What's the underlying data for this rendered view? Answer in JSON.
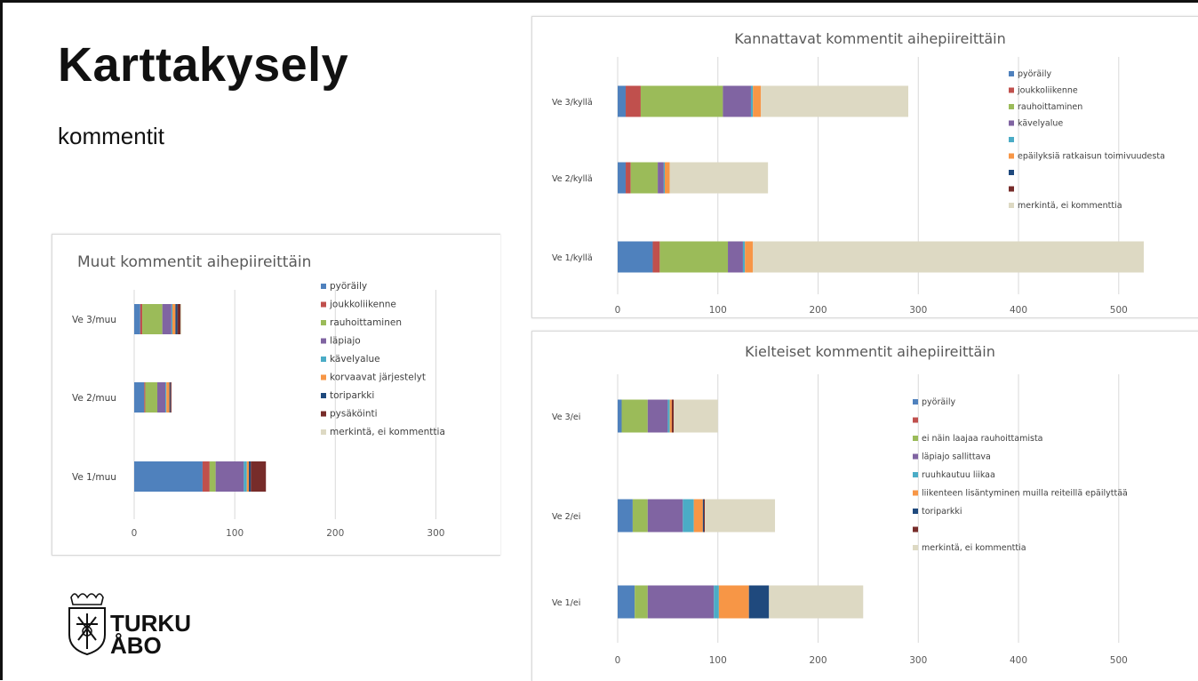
{
  "slide": {
    "title": "Karttakysely",
    "subtitle": "kommentit"
  },
  "logo": {
    "line1": "TURKU",
    "line2": "ÅBO"
  },
  "colors": {
    "pyoraily": "#4f81bd",
    "joukkoliikenne": "#c0504d",
    "rauhoittaminen": "#9bbb59",
    "lapiajo": "#8064a2",
    "kavelyalue": "#4bacc6",
    "orange": "#f79646",
    "toriparkki": "#1f497d",
    "pysakointi": "#772c2a",
    "merkinta": "#ddd9c3"
  },
  "chart_data": [
    {
      "type": "bar",
      "orientation": "horizontal",
      "stacked": true,
      "title": "Muut kommentit aihepiireittäin",
      "categories": [
        "Ve 3/muu",
        "Ve 2/muu",
        "Ve 1/muu"
      ],
      "xlim": [
        0,
        350
      ],
      "xticks": [
        "0",
        "100",
        "200",
        "300"
      ],
      "grid": true,
      "legend_position": "right",
      "series": [
        {
          "name": "pyöräily",
          "color": "#4f81bd",
          "values": [
            6,
            10,
            68
          ]
        },
        {
          "name": "joukkoliikenne",
          "color": "#c0504d",
          "values": [
            2,
            1,
            7
          ]
        },
        {
          "name": "rauhoittaminen",
          "color": "#9bbb59",
          "values": [
            20,
            12,
            6
          ]
        },
        {
          "name": "läpiajo",
          "color": "#8064a2",
          "values": [
            9,
            8,
            28
          ]
        },
        {
          "name": "kävelyalue",
          "color": "#4bacc6",
          "values": [
            1,
            1,
            3
          ]
        },
        {
          "name": "korvaavat järjestelyt",
          "color": "#f79646",
          "values": [
            3,
            3,
            2
          ]
        },
        {
          "name": "toriparkki",
          "color": "#1f497d",
          "values": [
            2,
            1,
            2
          ]
        },
        {
          "name": "pysäköinti",
          "color": "#772c2a",
          "values": [
            3,
            1,
            15
          ]
        },
        {
          "name": "merkintä, ei kommenttia",
          "color": "#ddd9c3",
          "values": [
            1,
            0,
            0
          ]
        }
      ]
    },
    {
      "type": "bar",
      "orientation": "horizontal",
      "stacked": true,
      "title": "Kannattavat kommentit aihepiireittäin",
      "categories": [
        "Ve 3/kyllä",
        "Ve 2/kyllä",
        "Ve 1/kyllä"
      ],
      "xlim": [
        0,
        580
      ],
      "xticks": [
        "0",
        "100",
        "200",
        "300",
        "400",
        "500"
      ],
      "grid": true,
      "legend_position": "right",
      "series": [
        {
          "name": "pyöräily",
          "color": "#4f81bd",
          "values": [
            8,
            8,
            35
          ]
        },
        {
          "name": "joukkoliikenne",
          "color": "#c0504d",
          "values": [
            15,
            5,
            7
          ]
        },
        {
          "name": "rauhoittaminen",
          "color": "#9bbb59",
          "values": [
            82,
            27,
            68
          ]
        },
        {
          "name": "kävelyalue",
          "color": "#8064a2",
          "values": [
            28,
            6,
            15
          ]
        },
        {
          "name": "",
          "color": "#4bacc6",
          "values": [
            2,
            1,
            2
          ]
        },
        {
          "name": "epäilyksiä ratkaisun toimivuudesta",
          "color": "#f79646",
          "values": [
            8,
            5,
            8
          ]
        },
        {
          "name": "",
          "color": "#1f497d",
          "values": [
            0,
            0,
            0
          ]
        },
        {
          "name": "",
          "color": "#772c2a",
          "values": [
            0,
            0,
            0
          ]
        },
        {
          "name": "merkintä, ei kommenttia",
          "color": "#ddd9c3",
          "values": [
            147,
            98,
            390
          ]
        }
      ]
    },
    {
      "type": "bar",
      "orientation": "horizontal",
      "stacked": true,
      "title": "Kielteiset kommentit aihepiireittäin",
      "categories": [
        "Ve 3/ei",
        "Ve 2/ei",
        "Ve 1/ei"
      ],
      "xlim": [
        0,
        580
      ],
      "xticks": [
        "0",
        "100",
        "200",
        "300",
        "400",
        "500"
      ],
      "grid": true,
      "legend_position": "right",
      "series": [
        {
          "name": "pyöräily",
          "color": "#4f81bd",
          "values": [
            4,
            15,
            17
          ]
        },
        {
          "name": "",
          "color": "#c0504d",
          "values": [
            0,
            0,
            0
          ]
        },
        {
          "name": "ei näin laajaa rauhoittamista",
          "color": "#9bbb59",
          "values": [
            26,
            15,
            13
          ]
        },
        {
          "name": "läpiajo sallittava",
          "color": "#8064a2",
          "values": [
            20,
            35,
            66
          ]
        },
        {
          "name": "ruuhkautuu liikaa",
          "color": "#4bacc6",
          "values": [
            2,
            11,
            5
          ]
        },
        {
          "name": "liikenteen lisäntyminen muilla reiteillä epäilyttää",
          "color": "#f79646",
          "values": [
            2,
            9,
            30
          ]
        },
        {
          "name": "toriparkki",
          "color": "#1f497d",
          "values": [
            0,
            1,
            20
          ]
        },
        {
          "name": "",
          "color": "#772c2a",
          "values": [
            2,
            1,
            0
          ]
        },
        {
          "name": "merkintä, ei kommenttia",
          "color": "#ddd9c3",
          "values": [
            44,
            70,
            94
          ]
        }
      ]
    }
  ]
}
